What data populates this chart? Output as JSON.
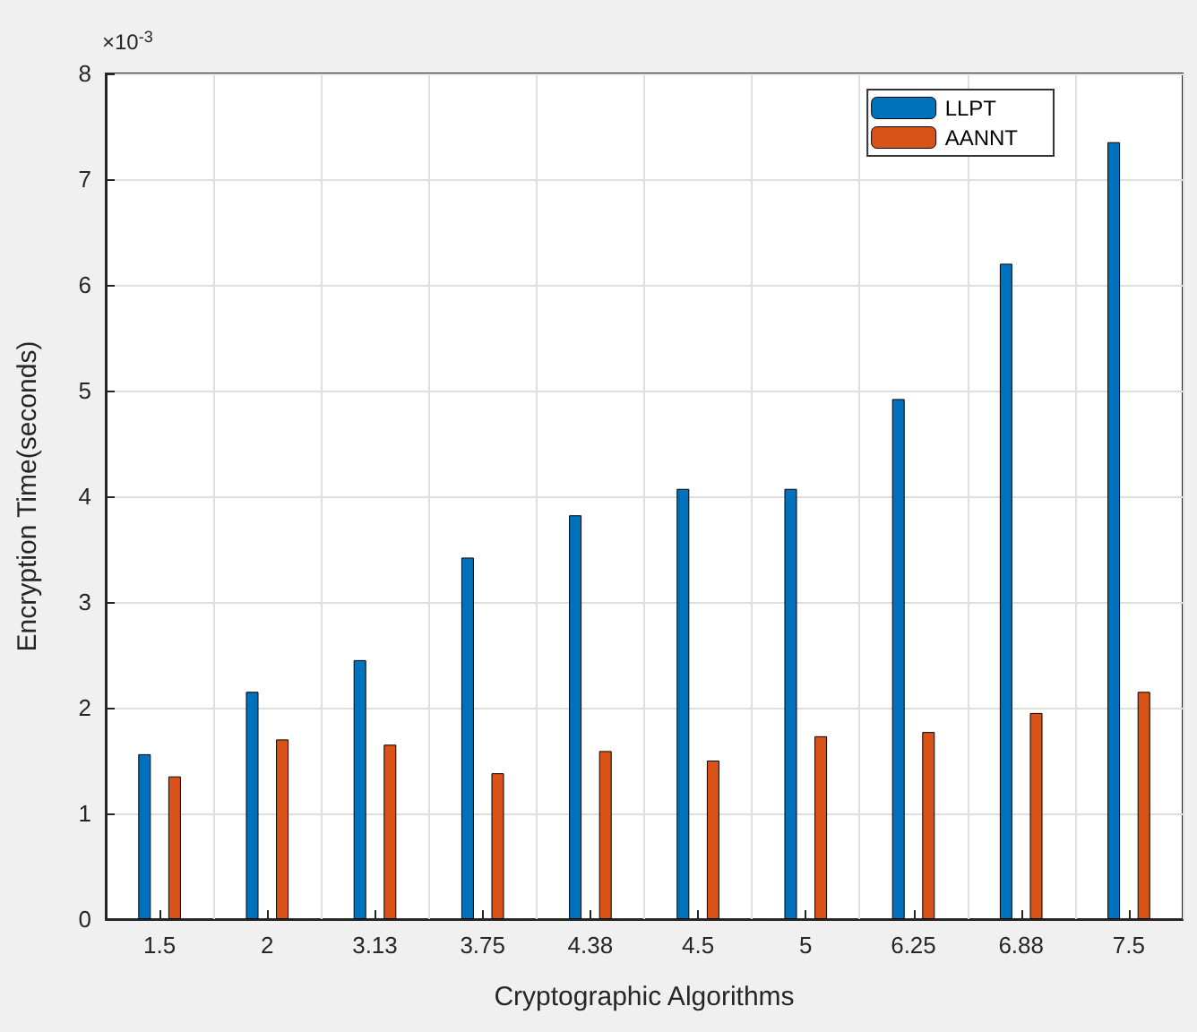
{
  "chart_data": {
    "type": "bar",
    "xlabel": "Cryptographic Algorithms",
    "ylabel": "Encryption Time(seconds)",
    "annotations": [
      "×10$^{-3}$"
    ],
    "categories": [
      "1.5",
      "2",
      "3.13",
      "3.75",
      "4.38",
      "4.5",
      "5",
      "6.25",
      "6.88",
      "7.5"
    ],
    "series": [
      {
        "name": "LLPT",
        "color": "#0072bd",
        "values": [
          1.56,
          2.15,
          2.45,
          3.42,
          3.82,
          4.07,
          4.07,
          4.92,
          6.2,
          7.35
        ]
      },
      {
        "name": "AANNT",
        "color": "#d95319",
        "values": [
          1.35,
          1.7,
          1.65,
          1.38,
          1.59,
          1.5,
          1.73,
          1.77,
          1.95,
          2.15
        ]
      }
    ],
    "ylim": [
      0,
      8
    ],
    "yticks": [
      0,
      1,
      2,
      3,
      4,
      5,
      6,
      7,
      8
    ],
    "grid": true,
    "legend": "top right"
  }
}
